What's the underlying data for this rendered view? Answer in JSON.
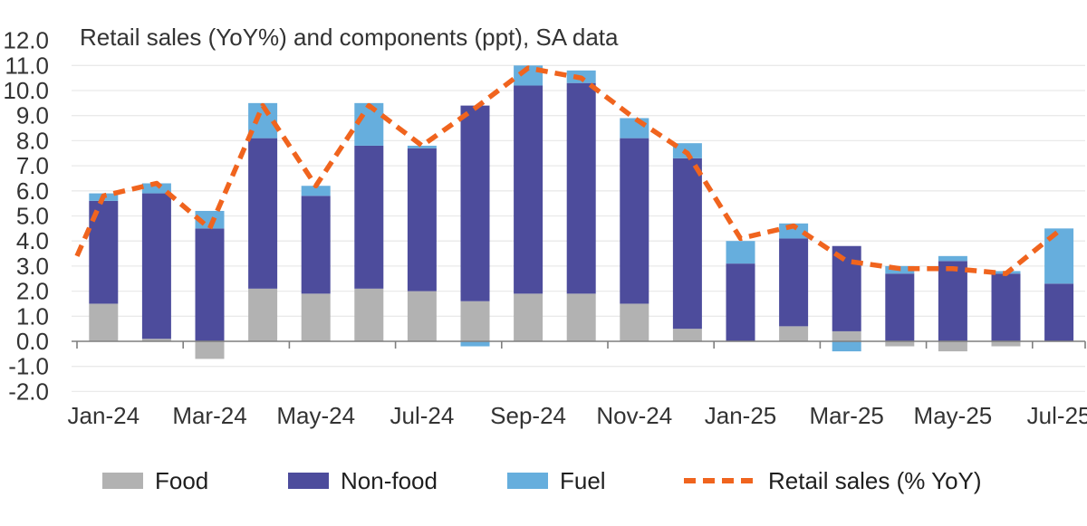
{
  "title": "Retail sales (YoY%) and components (ppt), SA data",
  "chart_data": {
    "type": "bar",
    "subtype": "stacked-bar-with-dashed-line-overlay",
    "title": "Retail sales (YoY%) and components (ppt), SA data",
    "x": [
      "Jan-24",
      "Feb-24",
      "Mar-24",
      "Apr-24",
      "May-24",
      "Jun-24",
      "Jul-24",
      "Aug-24",
      "Sep-24",
      "Oct-24",
      "Nov-24",
      "Dec-24",
      "Jan-25",
      "Feb-25",
      "Mar-25",
      "Apr-25",
      "May-25",
      "Jun-25",
      "Jul-25"
    ],
    "x_tick_labels": [
      "Jan-24",
      "Mar-24",
      "May-24",
      "Jul-24",
      "Sep-24",
      "Nov-24",
      "Jan-25",
      "Mar-25",
      "May-25",
      "Jul-25"
    ],
    "y_tick_labels": [
      "12.0",
      "11.0",
      "10.0",
      "9.0",
      "8.0",
      "7.0",
      "6.0",
      "5.0",
      "4.0",
      "3.0",
      "2.0",
      "1.0",
      "0.0",
      "-1.0",
      "-2.0"
    ],
    "ylim": [
      -2.0,
      12.0
    ],
    "ytick_step": 1.0,
    "grid": "horizontal",
    "legend_position": "bottom",
    "series": [
      {
        "name": "Food",
        "type": "bar",
        "color": "#B2B2B2",
        "values": [
          1.5,
          0.1,
          -0.7,
          2.1,
          1.9,
          2.1,
          2.0,
          1.6,
          1.9,
          1.9,
          1.5,
          0.5,
          0.0,
          0.6,
          0.4,
          -0.2,
          -0.4,
          -0.2,
          0.0
        ]
      },
      {
        "name": "Non-food",
        "type": "bar",
        "color": "#4D4C9C",
        "values": [
          4.1,
          5.8,
          4.5,
          6.0,
          3.9,
          5.7,
          5.7,
          7.8,
          8.3,
          8.4,
          6.6,
          6.8,
          3.1,
          3.5,
          3.4,
          2.7,
          3.2,
          2.7,
          2.3
        ]
      },
      {
        "name": "Fuel",
        "type": "bar",
        "color": "#66AEDD",
        "values": [
          0.3,
          0.4,
          0.7,
          1.4,
          0.4,
          1.7,
          0.1,
          -0.2,
          0.8,
          0.5,
          0.8,
          0.6,
          0.9,
          0.6,
          -0.4,
          0.3,
          0.2,
          0.1,
          2.2
        ]
      },
      {
        "name": "Retail sales (% YoY)",
        "type": "line",
        "style": "dashed",
        "color": "#F0641E",
        "values": [
          5.8,
          6.3,
          4.5,
          9.4,
          6.2,
          9.4,
          7.8,
          9.3,
          10.9,
          10.5,
          8.9,
          7.5,
          4.1,
          4.6,
          3.2,
          2.9,
          2.9,
          2.7,
          4.4
        ],
        "edge_lead_in_value": 3.4
      }
    ]
  },
  "legend": {
    "items": [
      {
        "label": "Food",
        "color": "#B2B2B2",
        "swatch": "bar"
      },
      {
        "label": "Non-food",
        "color": "#4D4C9C",
        "swatch": "bar"
      },
      {
        "label": "Fuel",
        "color": "#66AEDD",
        "swatch": "bar"
      },
      {
        "label": "Retail sales (% YoY)",
        "color": "#F0641E",
        "swatch": "dashed-line"
      }
    ]
  },
  "colors": {
    "background": "#FFFFFF",
    "gridline": "#EAEAEA",
    "axis": "#7F7F7F",
    "text": "#333333"
  }
}
